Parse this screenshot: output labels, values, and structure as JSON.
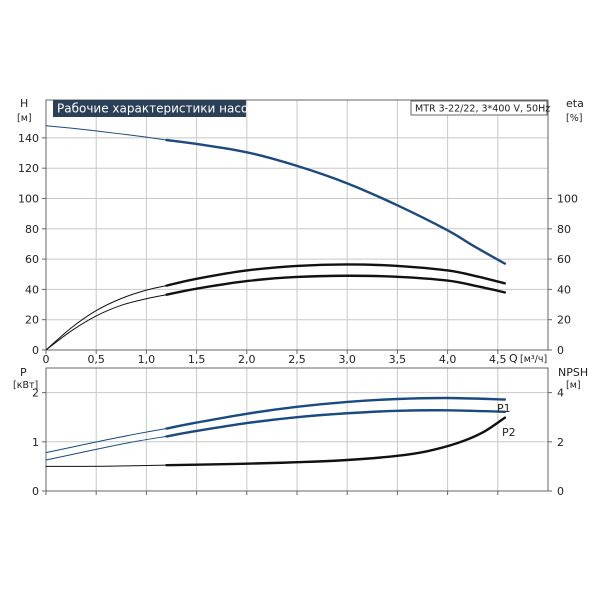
{
  "chart_data": [
    {
      "panel": "upper",
      "type": "line",
      "title": "Рабочие характеристики насоса",
      "subtitle": "MTR 3-22/22, 3*400 V, 50Hz",
      "xlabel": "Q [м³/ч]",
      "x_name": "Q",
      "x_unit": "[м³/ч]",
      "xlim": [
        0,
        5.0
      ],
      "xticks": [
        0,
        0.5,
        1.0,
        1.5,
        2.0,
        2.5,
        3.0,
        3.5,
        4.0,
        4.5
      ],
      "xtick_labels": [
        "0",
        "0,5",
        "1,0",
        "1,5",
        "2,0",
        "2,5",
        "3,0",
        "3,5",
        "4,0",
        "4,5"
      ],
      "y_left": {
        "name": "H",
        "unit": "[м]",
        "ylim": [
          0,
          165
        ],
        "ticks": [
          0,
          20,
          40,
          60,
          80,
          100,
          120,
          140
        ]
      },
      "y_right": {
        "name": "eta",
        "unit": "[%]",
        "ylim": [
          0,
          165
        ],
        "ticks": [
          0,
          20,
          40,
          60,
          80,
          100
        ]
      },
      "grid": true,
      "series": [
        {
          "id": "H-extended",
          "color": "#1a4a80",
          "axis": "left",
          "x": [
            0,
            0.25,
            0.5,
            0.75,
            1.0,
            1.2
          ],
          "y": [
            148,
            146.4,
            144.6,
            142.6,
            140.5,
            138.6
          ]
        },
        {
          "id": "H",
          "color": "#1a4a80",
          "axis": "left",
          "x": [
            1.2,
            1.5,
            2.0,
            2.5,
            3.0,
            3.5,
            4.0,
            4.25,
            4.57
          ],
          "y": [
            138.6,
            136.0,
            130.5,
            121.5,
            110.0,
            95.5,
            79.0,
            69.0,
            57.0
          ]
        },
        {
          "id": "eta-extended",
          "color": "#111111",
          "axis": "right",
          "x": [
            0,
            0.25,
            0.5,
            0.75,
            1.0,
            1.2
          ],
          "y": [
            0,
            12.5,
            22.5,
            29.5,
            33.8,
            36.5
          ]
        },
        {
          "id": "eta",
          "color": "#111111",
          "axis": "right",
          "x": [
            1.2,
            1.5,
            2.0,
            2.5,
            3.0,
            3.5,
            4.0,
            4.3,
            4.57
          ],
          "y": [
            36.5,
            40.5,
            45.5,
            48.2,
            49.0,
            48.3,
            45.8,
            42.0,
            38.0
          ]
        },
        {
          "id": "eta-upper-extended",
          "color": "#111111",
          "axis": "right",
          "x": [
            0,
            0.25,
            0.5,
            0.75,
            1.0,
            1.2
          ],
          "y": [
            0,
            14.5,
            26.0,
            34.0,
            39.5,
            42.5
          ]
        },
        {
          "id": "eta-upper",
          "color": "#111111",
          "axis": "right",
          "x": [
            1.2,
            1.5,
            2.0,
            2.5,
            3.0,
            3.5,
            4.0,
            4.3,
            4.57
          ],
          "y": [
            42.5,
            47.0,
            52.5,
            55.5,
            56.5,
            55.5,
            52.5,
            48.5,
            44.0
          ]
        }
      ]
    },
    {
      "panel": "lower",
      "type": "line",
      "xlim": [
        0,
        5.0
      ],
      "xticks": [
        0,
        0.5,
        1.0,
        1.5,
        2.0,
        2.5,
        3.0,
        3.5,
        4.0,
        4.5
      ],
      "y_left": {
        "name": "P",
        "unit": "[кВт]",
        "ylim": [
          0,
          2.5
        ],
        "ticks": [
          0,
          1,
          2
        ]
      },
      "y_right": {
        "name": "NPSH",
        "unit": "[м]",
        "ylim": [
          0,
          5
        ],
        "ticks": [
          0,
          2,
          4
        ]
      },
      "grid": true,
      "series": [
        {
          "id": "P1-extended",
          "color": "#1a4a80",
          "axis": "left",
          "x": [
            0,
            0.3,
            0.6,
            0.9,
            1.2
          ],
          "y": [
            0.78,
            0.91,
            1.04,
            1.16,
            1.27
          ]
        },
        {
          "id": "P1",
          "name": "P1",
          "color": "#1a4a80",
          "axis": "left",
          "x": [
            1.2,
            1.5,
            2.0,
            2.5,
            3.0,
            3.5,
            4.0,
            4.57
          ],
          "y": [
            1.27,
            1.39,
            1.57,
            1.71,
            1.81,
            1.87,
            1.89,
            1.86
          ]
        },
        {
          "id": "P2-extended",
          "color": "#1a4a80",
          "axis": "left",
          "x": [
            0,
            0.3,
            0.6,
            0.9,
            1.2
          ],
          "y": [
            0.63,
            0.76,
            0.89,
            1.01,
            1.11
          ]
        },
        {
          "id": "P2",
          "name": "P2",
          "color": "#1a4a80",
          "axis": "left",
          "x": [
            1.2,
            1.5,
            2.0,
            2.5,
            3.0,
            3.5,
            4.0,
            4.57
          ],
          "y": [
            1.11,
            1.22,
            1.38,
            1.5,
            1.58,
            1.63,
            1.64,
            1.61
          ]
        },
        {
          "id": "NPSH-extended",
          "color": "#111111",
          "axis": "right",
          "x": [
            0,
            0.4,
            0.8,
            1.2
          ],
          "y": [
            1.0,
            1.0,
            1.02,
            1.05
          ]
        },
        {
          "id": "NPSH",
          "color": "#111111",
          "axis": "right",
          "x": [
            1.2,
            1.5,
            2.0,
            2.5,
            3.0,
            3.5,
            3.8,
            4.1,
            4.35,
            4.57
          ],
          "y": [
            1.05,
            1.07,
            1.11,
            1.17,
            1.26,
            1.43,
            1.62,
            1.95,
            2.38,
            2.98
          ]
        }
      ]
    }
  ]
}
